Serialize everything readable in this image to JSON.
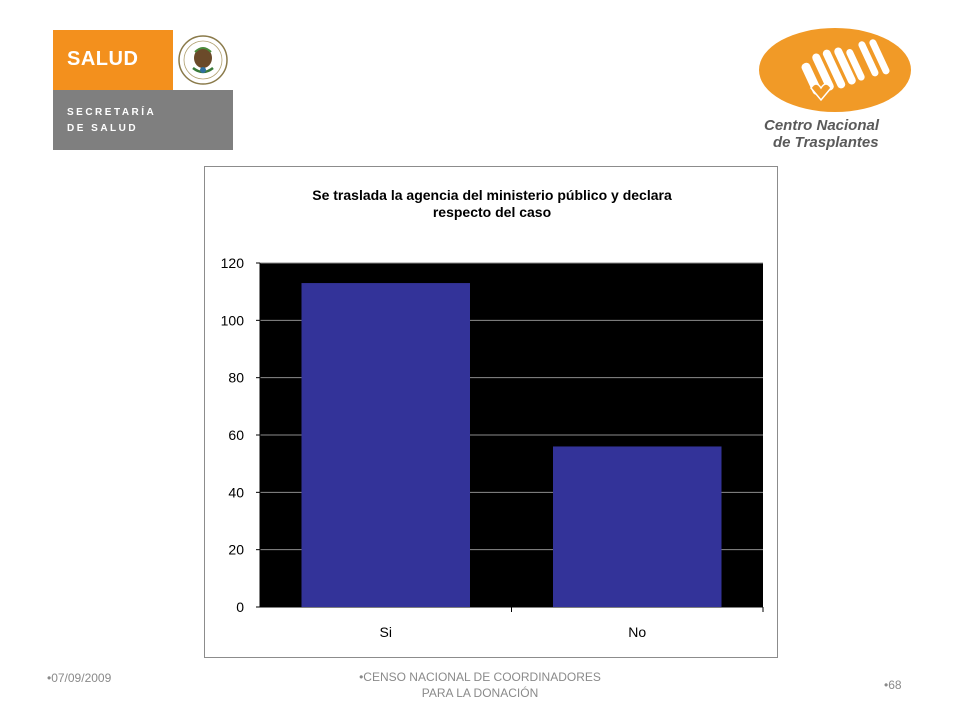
{
  "logos": {
    "salud": {
      "word": "SALUD",
      "line1": "SECRETARÍA",
      "line2": "DE SALUD"
    },
    "cenatra": {
      "line1": "Centro Nacional",
      "line2": "de Trasplantes"
    }
  },
  "colors": {
    "orange": "#f3901d",
    "gray": "#7f7f7f",
    "bar": "#333399",
    "plot_bg": "#000000"
  },
  "chart_data": {
    "type": "bar",
    "title_line1": "Se traslada la agencia del ministerio público y declara",
    "title_line2": "respecto del caso",
    "categories": [
      "Si",
      "No"
    ],
    "values": [
      113,
      56
    ],
    "ylim": [
      0,
      120
    ],
    "yticks": [
      0,
      20,
      40,
      60,
      80,
      100,
      120
    ],
    "xlabel": "",
    "ylabel": "",
    "grid": true
  },
  "footer": {
    "date": "07/09/2009",
    "center_line1": "CENSO NACIONAL DE COORDINADORES",
    "center_line2": "PARA LA DONACIÓN",
    "page": "68"
  }
}
